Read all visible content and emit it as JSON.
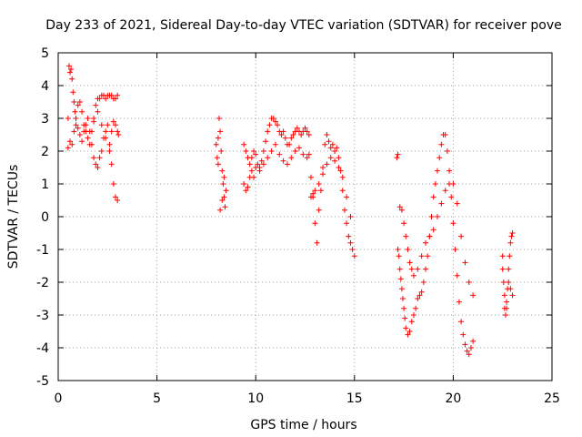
{
  "chart_data": {
    "type": "scatter",
    "title": "Day 233 of 2021, Sidereal Day-to-day VTEC variation (SDTVAR) for receiver pove",
    "xlabel": "GPS time / hours",
    "ylabel": "SDTVAR / TECUs",
    "xlim": [
      0,
      25
    ],
    "ylim": [
      -5,
      5
    ],
    "xticks": [
      0,
      5,
      10,
      15,
      20,
      25
    ],
    "yticks": [
      -5,
      -4,
      -3,
      -2,
      -1,
      0,
      1,
      2,
      3,
      4,
      5
    ],
    "grid": true,
    "marker": "+",
    "color": "#ff0000",
    "series": [
      {
        "name": "SDTVAR",
        "x": [
          0.5,
          0.55,
          0.6,
          0.65,
          0.7,
          0.75,
          0.8,
          0.85,
          0.9,
          1.0,
          1.1,
          1.2,
          1.3,
          1.4,
          1.5,
          1.6,
          1.7,
          1.8,
          1.9,
          2.0,
          2.1,
          2.2,
          2.3,
          2.4,
          2.5,
          2.6,
          2.7,
          2.8,
          2.9,
          3.0,
          0.5,
          0.6,
          0.7,
          0.8,
          0.9,
          1.0,
          1.1,
          1.2,
          1.3,
          1.4,
          1.5,
          1.6,
          1.7,
          1.8,
          1.9,
          2.0,
          2.1,
          2.2,
          2.3,
          2.4,
          2.5,
          2.6,
          2.7,
          2.8,
          2.9,
          3.0,
          1.8,
          2.0,
          2.2,
          2.4,
          2.6,
          2.7,
          2.8,
          2.9,
          3.0,
          3.05,
          8.0,
          8.05,
          8.1,
          8.15,
          8.2,
          8.25,
          8.3,
          8.35,
          8.4,
          8.45,
          8.5,
          8.1,
          8.2,
          8.3,
          8.4,
          9.4,
          9.5,
          9.6,
          9.7,
          9.8,
          9.9,
          10.0,
          10.1,
          10.2,
          10.3,
          10.4,
          10.5,
          10.6,
          10.7,
          10.8,
          10.9,
          11.0,
          11.1,
          11.2,
          11.3,
          11.4,
          11.5,
          11.6,
          11.7,
          11.8,
          11.9,
          12.0,
          12.1,
          12.2,
          12.3,
          12.4,
          12.5,
          12.6,
          12.7,
          9.4,
          9.5,
          9.6,
          9.7,
          9.8,
          9.9,
          10.0,
          10.2,
          10.4,
          10.6,
          10.8,
          11.0,
          11.2,
          11.4,
          11.6,
          11.8,
          12.0,
          12.2,
          12.4,
          12.6,
          12.7,
          12.8,
          12.9,
          13.0,
          13.1,
          13.2,
          13.3,
          13.4,
          13.5,
          13.6,
          13.7,
          13.8,
          13.9,
          14.0,
          14.1,
          14.2,
          14.3,
          14.4,
          14.5,
          14.6,
          14.7,
          14.8,
          14.9,
          15.0,
          12.8,
          12.9,
          13.0,
          13.2,
          13.4,
          13.6,
          13.8,
          14.0,
          14.2,
          14.4,
          14.6,
          14.8,
          17.2,
          17.25,
          17.3,
          17.35,
          17.4,
          17.45,
          17.5,
          17.55,
          17.6,
          17.7,
          17.8,
          17.9,
          18.0,
          18.1,
          18.2,
          18.3,
          18.4,
          18.5,
          18.6,
          18.7,
          18.8,
          18.9,
          19.0,
          19.1,
          19.2,
          19.3,
          19.4,
          19.5,
          19.6,
          19.7,
          19.8,
          19.9,
          20.0,
          20.1,
          20.2,
          20.3,
          20.4,
          20.5,
          20.6,
          20.7,
          20.8,
          20.9,
          21.0,
          17.3,
          17.4,
          17.5,
          17.6,
          17.7,
          17.8,
          17.9,
          18.0,
          18.2,
          18.4,
          18.6,
          18.8,
          19.0,
          19.2,
          19.4,
          19.6,
          19.8,
          20.0,
          20.2,
          20.4,
          20.6,
          20.8,
          21.0,
          17.15,
          17.2,
          22.5,
          22.55,
          22.6,
          22.65,
          22.7,
          22.75,
          22.8,
          22.85,
          22.9,
          22.95,
          23.0,
          22.5,
          22.6,
          22.7,
          22.8,
          22.9,
          23.0
        ],
        "y": [
          3.0,
          4.6,
          4.4,
          4.5,
          4.2,
          3.8,
          3.5,
          3.2,
          3.0,
          3.4,
          3.5,
          3.2,
          2.8,
          2.6,
          2.4,
          2.2,
          2.6,
          3.0,
          3.4,
          3.6,
          3.6,
          3.7,
          3.7,
          3.6,
          3.7,
          3.7,
          3.7,
          3.6,
          3.6,
          3.7,
          2.1,
          2.3,
          2.2,
          2.6,
          2.8,
          2.7,
          2.5,
          2.3,
          2.6,
          2.8,
          3.0,
          2.6,
          2.2,
          1.8,
          1.6,
          1.5,
          1.8,
          2.0,
          2.4,
          2.6,
          2.8,
          2.2,
          1.6,
          1.0,
          0.6,
          0.5,
          2.9,
          3.2,
          2.8,
          2.4,
          2.0,
          2.6,
          2.9,
          2.8,
          2.6,
          2.5,
          2.2,
          1.8,
          2.4,
          3.0,
          2.6,
          2.0,
          1.4,
          1.0,
          0.6,
          0.3,
          0.8,
          1.6,
          0.2,
          0.5,
          1.2,
          2.2,
          2.0,
          1.8,
          1.6,
          1.8,
          2.0,
          1.9,
          1.6,
          1.5,
          1.7,
          2.0,
          2.3,
          2.6,
          2.8,
          3.0,
          3.0,
          2.9,
          2.8,
          2.6,
          2.5,
          2.6,
          2.4,
          2.2,
          2.2,
          2.4,
          2.5,
          2.6,
          2.7,
          2.6,
          2.5,
          2.6,
          2.7,
          2.6,
          2.5,
          1.0,
          0.8,
          0.9,
          1.2,
          1.4,
          1.2,
          1.5,
          1.4,
          1.6,
          1.8,
          2.0,
          2.2,
          1.9,
          1.7,
          1.6,
          1.8,
          2.0,
          2.1,
          1.9,
          1.8,
          1.9,
          1.2,
          0.6,
          -0.2,
          -0.8,
          0.2,
          0.8,
          1.5,
          2.2,
          2.5,
          2.3,
          2.1,
          2.2,
          2.0,
          2.1,
          1.8,
          1.4,
          0.8,
          0.2,
          -0.2,
          -0.6,
          -0.8,
          -1.0,
          -1.2,
          0.6,
          0.7,
          0.8,
          1.0,
          1.3,
          1.6,
          1.8,
          1.7,
          1.5,
          1.2,
          0.6,
          0.0,
          -1.0,
          -1.2,
          -1.6,
          -1.9,
          -2.2,
          -2.5,
          -2.8,
          -3.1,
          -3.4,
          -3.6,
          -3.5,
          -3.2,
          -3.0,
          -2.8,
          -2.5,
          -2.4,
          -2.3,
          -2.0,
          -1.6,
          -1.2,
          -0.6,
          0.0,
          0.6,
          1.0,
          1.4,
          1.8,
          2.2,
          2.5,
          2.5,
          2.0,
          1.4,
          0.6,
          -0.2,
          -1.0,
          -1.8,
          -2.6,
          -3.2,
          -3.6,
          -3.9,
          -4.1,
          -4.2,
          -4.0,
          -3.8,
          0.3,
          0.2,
          -0.2,
          -0.6,
          -1.0,
          -1.4,
          -1.6,
          -1.8,
          -1.6,
          -1.2,
          -0.8,
          -0.6,
          -0.4,
          0.0,
          0.4,
          0.8,
          1.0,
          1.0,
          0.4,
          -0.6,
          -1.4,
          -2.0,
          -2.4,
          1.8,
          1.9,
          -1.2,
          -2.0,
          -2.8,
          -3.0,
          -2.6,
          -2.2,
          -1.6,
          -1.2,
          -0.8,
          -0.6,
          -0.5,
          -1.6,
          -2.4,
          -2.8,
          -2.0,
          -2.2,
          -2.4
        ]
      }
    ]
  }
}
